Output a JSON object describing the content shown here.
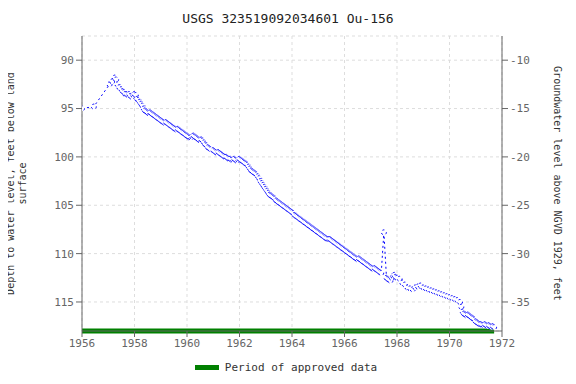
{
  "chart_data": {
    "type": "line",
    "title": "USGS 323519092034601 Ou-156",
    "ylabel": "Depth to water level, feet below land\nsurface",
    "y2label": "Groundwater level above NGVD 1929, feet",
    "xlim": [
      1956,
      1972
    ],
    "xticks": [
      1956,
      1958,
      1960,
      1962,
      1964,
      1966,
      1968,
      1970,
      1972
    ],
    "ylim": [
      118.0,
      87.5
    ],
    "yticks": [
      90,
      95,
      100,
      105,
      110,
      115
    ],
    "y2lim": [
      -38.0,
      -7.5
    ],
    "y2ticks": [
      -10,
      -15,
      -20,
      -25,
      -30,
      -35
    ],
    "grid": true,
    "color": "#0000FF",
    "marker": "circle",
    "line_style": "dotted",
    "approved_period": {
      "name": "Period of approved data",
      "color": "#008000",
      "start": 1956.0,
      "end": 1971.7
    },
    "x": [
      1956.0,
      1956.45,
      1957.05,
      1957.15,
      1957.25,
      1957.3,
      1957.35,
      1957.42,
      1957.5,
      1957.55,
      1957.6,
      1957.65,
      1957.7,
      1957.75,
      1957.8,
      1957.85,
      1957.9,
      1957.95,
      1958.0,
      1958.05,
      1958.1,
      1958.15,
      1958.2,
      1958.25,
      1958.3,
      1958.35,
      1958.4,
      1958.45,
      1958.5,
      1958.55,
      1958.6,
      1958.65,
      1958.7,
      1958.75,
      1958.8,
      1958.85,
      1958.9,
      1958.95,
      1959.0,
      1959.05,
      1959.1,
      1959.15,
      1959.2,
      1959.25,
      1959.3,
      1959.35,
      1959.4,
      1959.45,
      1959.5,
      1959.55,
      1959.6,
      1959.65,
      1959.7,
      1959.75,
      1959.8,
      1959.85,
      1959.9,
      1959.95,
      1960.0,
      1960.05,
      1960.1,
      1960.15,
      1960.2,
      1960.25,
      1960.3,
      1960.35,
      1960.4,
      1960.45,
      1960.5,
      1960.55,
      1960.6,
      1960.65,
      1960.7,
      1960.75,
      1960.8,
      1960.85,
      1960.9,
      1961.0,
      1961.05,
      1961.1,
      1961.15,
      1961.2,
      1961.25,
      1961.3,
      1961.35,
      1961.4,
      1961.45,
      1961.5,
      1961.55,
      1961.6,
      1961.65,
      1961.7,
      1961.75,
      1961.8,
      1961.85,
      1961.9,
      1961.95,
      1962.0,
      1962.05,
      1962.1,
      1962.15,
      1962.2,
      1962.25,
      1962.3,
      1962.35,
      1962.4,
      1962.45,
      1962.5,
      1962.55,
      1962.6,
      1962.65,
      1962.7,
      1962.75,
      1962.8,
      1962.85,
      1962.9,
      1962.95,
      1963.0,
      1963.05,
      1963.1,
      1963.15,
      1963.2,
      1963.25,
      1963.3,
      1963.35,
      1963.4,
      1963.45,
      1963.5,
      1963.55,
      1963.6,
      1963.65,
      1963.7,
      1963.75,
      1963.8,
      1963.85,
      1963.9,
      1963.95,
      1964.0,
      1964.05,
      1964.1,
      1964.15,
      1964.2,
      1964.25,
      1964.3,
      1964.35,
      1964.4,
      1964.45,
      1964.5,
      1964.55,
      1964.6,
      1964.65,
      1964.7,
      1964.75,
      1964.8,
      1964.85,
      1964.9,
      1964.95,
      1965.0,
      1965.05,
      1965.1,
      1965.15,
      1965.2,
      1965.25,
      1965.3,
      1965.35,
      1965.4,
      1965.45,
      1965.5,
      1965.55,
      1965.6,
      1965.65,
      1965.7,
      1965.75,
      1965.8,
      1965.85,
      1965.9,
      1965.95,
      1966.0,
      1966.05,
      1966.1,
      1966.15,
      1966.2,
      1966.25,
      1966.3,
      1966.35,
      1966.4,
      1966.45,
      1966.5,
      1966.55,
      1966.6,
      1966.65,
      1966.7,
      1966.75,
      1966.8,
      1966.85,
      1966.9,
      1966.95,
      1967.0,
      1967.05,
      1967.1,
      1967.15,
      1967.2,
      1967.25,
      1967.3,
      1967.35,
      1967.4,
      1967.5,
      1967.6,
      1967.65,
      1967.7,
      1967.75,
      1967.8,
      1967.85,
      1967.9,
      1967.95,
      1968.0,
      1968.1,
      1968.2,
      1968.3,
      1968.4,
      1968.5,
      1968.6,
      1968.7,
      1968.8,
      1968.9,
      1969.0,
      1969.1,
      1969.2,
      1969.3,
      1969.4,
      1969.5,
      1969.6,
      1969.7,
      1969.8,
      1969.9,
      1970.0,
      1970.1,
      1970.2,
      1970.3,
      1970.4,
      1970.45,
      1970.5,
      1970.55,
      1970.6,
      1970.65,
      1970.7,
      1970.75,
      1970.8,
      1970.85,
      1970.9,
      1970.95,
      1971.0,
      1971.05,
      1971.1,
      1971.15,
      1971.2,
      1971.25,
      1971.3,
      1971.35,
      1971.4,
      1971.45,
      1971.5,
      1971.55,
      1971.6,
      1971.65,
      1971.7
    ],
    "values": [
      95.0,
      94.8,
      92.5,
      92.2,
      91.8,
      92.0,
      92.5,
      92.8,
      93.0,
      93.2,
      93.3,
      93.5,
      93.5,
      93.6,
      93.5,
      93.7,
      93.8,
      93.6,
      93.5,
      93.6,
      94.0,
      94.1,
      94.3,
      94.5,
      94.7,
      95.0,
      95.2,
      95.3,
      95.4,
      95.5,
      95.4,
      95.5,
      95.6,
      95.7,
      95.8,
      95.9,
      96.0,
      96.1,
      96.2,
      96.3,
      96.4,
      96.5,
      96.4,
      96.5,
      96.6,
      96.7,
      96.8,
      96.9,
      97.0,
      97.1,
      97.2,
      97.1,
      97.2,
      97.3,
      97.4,
      97.5,
      97.6,
      97.7,
      97.8,
      97.9,
      98.0,
      98.0,
      97.9,
      97.8,
      97.9,
      98.0,
      98.1,
      98.2,
      98.3,
      98.2,
      98.3,
      98.5,
      98.7,
      98.8,
      99.0,
      99.1,
      99.2,
      99.3,
      99.4,
      99.5,
      99.6,
      99.5,
      99.6,
      99.7,
      99.8,
      99.9,
      100.0,
      100.0,
      100.1,
      100.2,
      100.2,
      100.3,
      100.3,
      100.2,
      100.3,
      100.4,
      100.3,
      100.2,
      100.3,
      100.4,
      100.5,
      100.6,
      100.7,
      100.8,
      101.0,
      101.2,
      101.4,
      101.5,
      101.6,
      101.7,
      101.8,
      102.0,
      102.2,
      102.5,
      102.7,
      102.9,
      103.1,
      103.3,
      103.5,
      103.7,
      103.9,
      104.0,
      104.1,
      104.2,
      104.3,
      104.5,
      104.6,
      104.7,
      104.8,
      104.9,
      105.0,
      105.1,
      105.2,
      105.3,
      105.4,
      105.5,
      105.6,
      105.7,
      105.8,
      106.0,
      106.1,
      106.2,
      106.3,
      106.4,
      106.5,
      106.6,
      106.7,
      106.8,
      106.9,
      107.0,
      107.1,
      107.2,
      107.3,
      107.4,
      107.5,
      107.6,
      107.7,
      107.8,
      107.9,
      108.0,
      108.1,
      108.2,
      108.3,
      108.4,
      108.5,
      108.5,
      108.5,
      108.6,
      108.7,
      108.8,
      108.9,
      109.0,
      109.1,
      109.2,
      109.3,
      109.4,
      109.5,
      109.6,
      109.7,
      109.8,
      109.9,
      110.0,
      110.1,
      110.2,
      110.3,
      110.4,
      110.5,
      110.6,
      110.5,
      110.6,
      110.7,
      110.8,
      110.9,
      111.0,
      111.1,
      111.2,
      111.3,
      111.4,
      111.5,
      111.6,
      111.5,
      111.6,
      111.7,
      111.8,
      111.9,
      112.0,
      107.8,
      112.5,
      112.6,
      112.7,
      112.8,
      112.5,
      112.3,
      112.2,
      112.4,
      112.5,
      112.6,
      113.0,
      113.2,
      113.5,
      113.6,
      113.7,
      113.5,
      113.4,
      113.3,
      113.5,
      113.6,
      113.7,
      113.8,
      113.9,
      114.0,
      114.1,
      114.2,
      114.3,
      114.4,
      114.5,
      114.6,
      114.7,
      114.8,
      115.0,
      115.5,
      116.0,
      116.2,
      116.3,
      116.4,
      116.3,
      116.4,
      116.5,
      116.6,
      116.7,
      116.8,
      117.0,
      117.1,
      117.2,
      117.3,
      117.3,
      117.4,
      117.4,
      117.3,
      117.4,
      117.5,
      117.4,
      117.5,
      117.6,
      117.5,
      117.6
    ]
  }
}
